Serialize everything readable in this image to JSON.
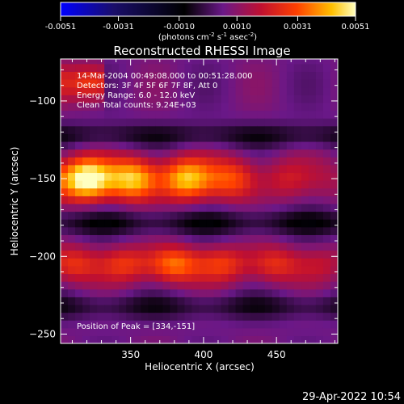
{
  "colorbar": {
    "tick_labels": [
      "-0.0051",
      "-0.0031",
      "-0.0010",
      "0.0010",
      "0.0031",
      "0.0051"
    ],
    "tick_values": [
      -0.0051,
      -0.0031,
      -0.001,
      0.001,
      0.0031,
      0.0051
    ],
    "range": [
      -0.0051,
      0.0051
    ],
    "units_prefix": "(photons cm",
    "units_sup1": "-2",
    "units_mid1": " s",
    "units_sup2": "-1",
    "units_mid2": " asec",
    "units_sup3": "-2",
    "units_suffix": ")",
    "colors": [
      "#0000ff",
      "#2a1060",
      "#000000",
      "#5a1aa0",
      "#b0104a",
      "#ff3000",
      "#ffa800",
      "#ffffa0"
    ]
  },
  "chart_data": {
    "type": "heatmap",
    "title": "Reconstructed RHESSI Image",
    "xlabel": "Heliocentric X (arcsec)",
    "ylabel": "Heliocentric Y (arcsec)",
    "xlim": [
      302,
      492
    ],
    "ylim": [
      -256,
      -73
    ],
    "xticks": [
      350,
      400,
      450
    ],
    "yticks": [
      -100,
      -150,
      -200,
      -250
    ],
    "value_range": [
      -0.0051,
      0.0051
    ],
    "features": [
      {
        "y_center": -150,
        "x_range": [
          302,
          492
        ],
        "peak_x": 334,
        "peak": 0.0051,
        "width": 14
      },
      {
        "y_center": -205,
        "x_range": [
          302,
          492
        ],
        "peak_x": 380,
        "peak": 0.003,
        "width": 12
      },
      {
        "y_center": -88,
        "x_range": [
          302,
          330
        ],
        "peak_x": 310,
        "peak": 0.0025,
        "width": 12
      }
    ],
    "annotations": [
      "14-Mar-2004 00:49:08.000 to 00:51:28.000",
      "Detectors: 3F 4F 5F 6F 7F 8F, Att 0",
      "Energy Range: 6.0 - 12.0 keV",
      "Clean     Total counts: 9.24E+03"
    ],
    "peak_label": "Position of Peak = [334,-151]"
  },
  "footer": {
    "timestamp": "29-Apr-2022 10:54"
  }
}
